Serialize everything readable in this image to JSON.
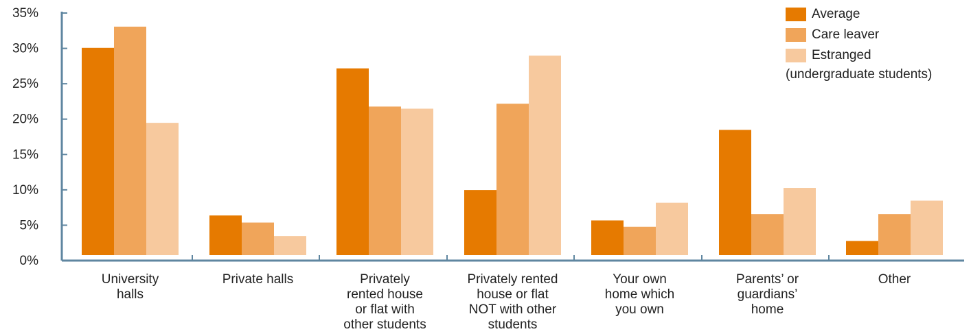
{
  "chart_data": {
    "type": "bar",
    "categories": [
      [
        "University",
        "halls"
      ],
      [
        "Private halls"
      ],
      [
        "Privately",
        "rented house",
        "or flat with",
        "other students"
      ],
      [
        "Privately rented",
        "house or flat",
        "NOT with other",
        "students"
      ],
      [
        "Your own",
        "home which",
        "you own"
      ],
      [
        "Parents’ or",
        "guardians’",
        "home"
      ],
      [
        "Other"
      ]
    ],
    "series": [
      {
        "name": "Average",
        "color": "#e67a00",
        "values": [
          29.3,
          5.6,
          26.4,
          9.2,
          4.9,
          17.7,
          2.0
        ]
      },
      {
        "name": "Care leaver",
        "color": "#f0a55a",
        "values": [
          32.3,
          4.6,
          21.0,
          21.4,
          4.0,
          5.8,
          5.8
        ]
      },
      {
        "name": "Estranged",
        "color": "#f7c99e",
        "values": [
          18.7,
          2.7,
          20.7,
          28.2,
          7.4,
          9.5,
          7.7
        ]
      }
    ],
    "yticks": [
      "0%",
      "5%",
      "10%",
      "15%",
      "20%",
      "25%",
      "30%",
      "35%"
    ],
    "ylim": [
      0,
      35
    ],
    "legend_note": "(undergraduate students)",
    "legend_position": "top-right",
    "grid": false,
    "axis_color": "#5f86a0"
  }
}
